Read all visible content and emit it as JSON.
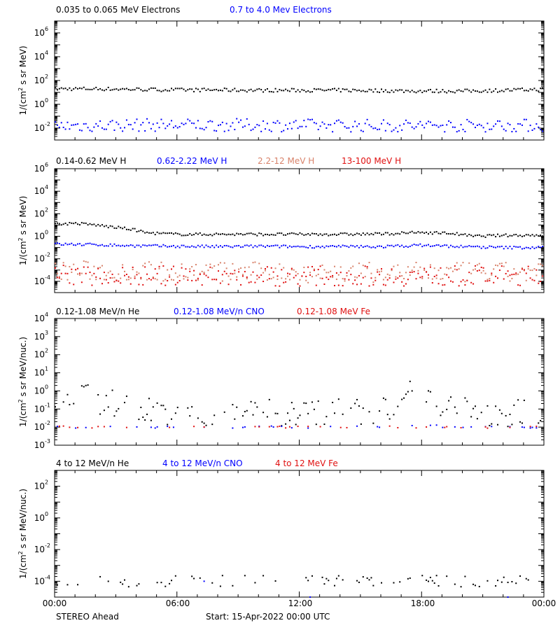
{
  "figure": {
    "footer_left": "STEREO Ahead",
    "footer_center": "Start: 15-Apr-2022 00:00 UTC",
    "x_tick_labels": [
      "00:00",
      "06:00",
      "12:00",
      "18:00",
      "00:00"
    ]
  },
  "chart_data": [
    {
      "type": "scatter",
      "ylabel_main": "1/(cm",
      "ylabel_sup": "2",
      "ylabel_rest": " s sr MeV)",
      "y_log": true,
      "ylim_exp": [
        -3,
        7
      ],
      "y_tick_exps": [
        -2,
        0,
        2,
        4,
        6
      ],
      "xlim_hours": [
        0,
        24
      ],
      "legend": [
        {
          "text": "0.035 to 0.065 MeV Electrons",
          "color": "#000000"
        },
        {
          "text": "0.7 to 4.0 Mev Electrons",
          "color": "#0000ff"
        }
      ],
      "series": [
        {
          "name": "0.035 to 0.065 MeV Electrons",
          "color": "#000000",
          "x": [
            0,
            2,
            4,
            6,
            8,
            10,
            12,
            14,
            16,
            18,
            20,
            22,
            24
          ],
          "y": [
            20,
            20,
            18,
            16,
            16,
            15,
            15,
            15,
            14,
            13,
            13,
            15,
            18
          ],
          "scatter": 0.05
        },
        {
          "name": "0.7 to 4.0 Mev Electrons",
          "color": "#0000ff",
          "x": [
            0,
            4,
            8,
            12,
            16,
            20,
            24
          ],
          "y": [
            0.015,
            0.018,
            0.018,
            0.017,
            0.016,
            0.016,
            0.017
          ],
          "scatter": 0.18
        }
      ]
    },
    {
      "type": "scatter",
      "ylabel_main": "1/(cm",
      "ylabel_sup": "2",
      "ylabel_rest": " s sr MeV)",
      "y_log": true,
      "ylim_exp": [
        -5,
        6
      ],
      "y_tick_exps": [
        -4,
        -2,
        0,
        2,
        4,
        6
      ],
      "xlim_hours": [
        0,
        24
      ],
      "legend": [
        {
          "text": "0.14-0.62 MeV H",
          "color": "#000000"
        },
        {
          "text": "0.62-2.22 MeV H",
          "color": "#0000ff"
        },
        {
          "text": "2.2-12 MeV H",
          "color": "#d8826a"
        },
        {
          "text": "13-100 MeV H",
          "color": "#e01010"
        }
      ],
      "series": [
        {
          "name": "0.14-0.62 MeV H",
          "color": "#000000",
          "x": [
            0,
            1,
            2,
            3,
            3.8,
            4.5,
            6,
            8,
            10,
            12,
            14,
            16,
            18,
            19.5,
            20.5,
            22,
            24
          ],
          "y": [
            12,
            14,
            10,
            6,
            4,
            2,
            1.5,
            1.5,
            1.5,
            1.5,
            1.5,
            1.6,
            2.2,
            1.8,
            1,
            1.2,
            1.3
          ],
          "scatter": 0.04
        },
        {
          "name": "0.62-2.22 MeV H",
          "color": "#0000ff",
          "x": [
            0,
            2,
            4,
            6,
            8,
            10,
            12,
            14,
            16,
            18,
            20,
            22,
            24
          ],
          "y": [
            0.2,
            0.18,
            0.14,
            0.13,
            0.12,
            0.13,
            0.12,
            0.12,
            0.12,
            0.16,
            0.12,
            0.1,
            0.1
          ],
          "scatter": 0.04
        },
        {
          "name": "2.2-12 MeV H",
          "color": "#d8826a",
          "x": [
            0,
            4,
            8,
            12,
            16,
            20,
            24
          ],
          "y": [
            0.0009,
            0.0008,
            0.0007,
            0.0006,
            0.0006,
            0.0006,
            0.0006
          ],
          "scatter": 0.3
        },
        {
          "name": "13-100 MeV H",
          "color": "#e01010",
          "x": [
            0,
            4,
            8,
            12,
            16,
            20,
            24
          ],
          "y": [
            0.0004,
            0.0003,
            0.0003,
            0.0003,
            0.0003,
            0.0003,
            0.0003
          ],
          "scatter": 0.3
        }
      ]
    },
    {
      "type": "scatter",
      "ylabel_main": "1/(cm",
      "ylabel_sup": "2",
      "ylabel_rest": " s sr MeV/nuc.)",
      "y_log": true,
      "ylim_exp": [
        -3,
        4
      ],
      "y_tick_exps": [
        -3,
        -2,
        -1,
        0,
        1,
        2,
        3,
        4
      ],
      "xlim_hours": [
        0,
        24
      ],
      "legend": [
        {
          "text": "0.12-1.08 MeV/n He",
          "color": "#000000"
        },
        {
          "text": "0.12-1.08 MeV/n CNO",
          "color": "#0000ff"
        },
        {
          "text": "0.12-1.08 MeV Fe",
          "color": "#e01010"
        }
      ],
      "series": [
        {
          "name": "0.12-1.08 MeV/n He",
          "color": "#000000",
          "x": [
            0,
            0.5,
            1,
            1.5,
            2,
            2.5,
            3,
            3.5,
            4,
            6,
            8,
            10,
            12,
            14,
            16,
            16.5,
            17,
            17.5,
            18,
            18.5,
            19,
            20,
            22,
            24
          ],
          "y": [
            0.6,
            0.9,
            0.8,
            0.5,
            0.3,
            0.25,
            0.2,
            0.15,
            0.1,
            0.07,
            0.06,
            0.06,
            0.06,
            0.07,
            0.08,
            0.15,
            0.4,
            0.8,
            0.9,
            0.4,
            0.2,
            0.08,
            0.06,
            0.07
          ],
          "scatter": 0.25,
          "density": 0.55
        },
        {
          "name": "0.12-1.08 MeV/n CNO",
          "color": "#0000ff",
          "x": [
            0,
            4,
            8,
            12,
            16,
            18,
            20,
            24
          ],
          "y": [
            0.01,
            0.01,
            0.01,
            0.01,
            0.01,
            0.012,
            0.01,
            0.01
          ],
          "scatter": 0.02,
          "density": 0.2
        },
        {
          "name": "0.12-1.08 MeV Fe",
          "color": "#e01010",
          "x": [
            0,
            1,
            2,
            3,
            7,
            19,
            24
          ],
          "y": [
            0.01,
            0.01,
            0.01,
            0.01,
            0.01,
            0.01,
            0.01
          ],
          "scatter": 0.02,
          "density": 0.12
        }
      ]
    },
    {
      "type": "scatter",
      "ylabel_main": "1/(cm",
      "ylabel_sup": "2",
      "ylabel_rest": " s sr MeV/nuc.)",
      "y_log": true,
      "ylim_exp": [
        -5,
        3
      ],
      "y_tick_exps": [
        -4,
        -2,
        0,
        2
      ],
      "xlim_hours": [
        0,
        24
      ],
      "legend": [
        {
          "text": "4 to 12 MeV/n He",
          "color": "#000000"
        },
        {
          "text": "4 to 12 MeV/n CNO",
          "color": "#0000ff"
        },
        {
          "text": "4 to 12 MeV Fe",
          "color": "#e01010"
        }
      ],
      "series": [
        {
          "name": "4 to 12 MeV/n He",
          "color": "#000000",
          "x": [
            0,
            4,
            8,
            12,
            16,
            20,
            24
          ],
          "y": [
            0.0001,
            0.0001,
            0.0001,
            0.0001,
            0.0001,
            0.0001,
            0.0001
          ],
          "scatter": 0.12,
          "density": 0.3
        },
        {
          "name": "4 to 12 MeV/n CNO",
          "color": "#0000ff",
          "x": [
            7.3,
            12.5,
            22.2
          ],
          "y": [
            0.0001,
            1e-05,
            1e-05
          ],
          "scatter": 0.0,
          "density": 1.0,
          "sparse": true
        }
      ]
    }
  ]
}
